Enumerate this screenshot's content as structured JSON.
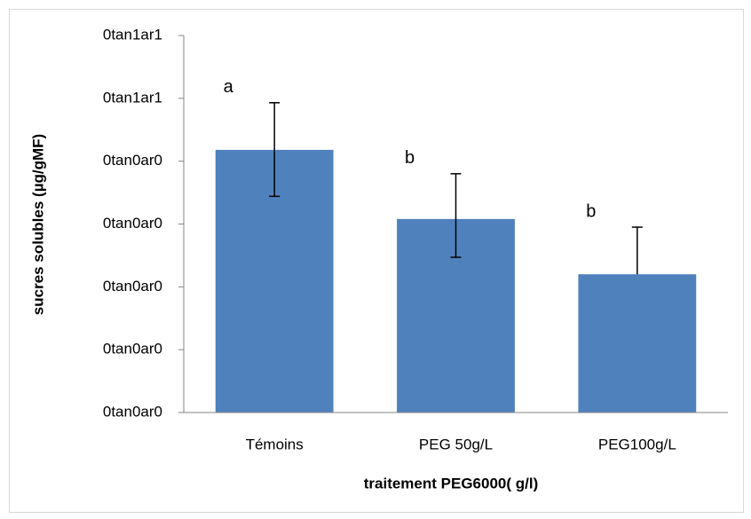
{
  "chart_data": {
    "type": "bar",
    "categories": [
      "Témoins",
      "PEG 50g/L",
      "PEG100g/L"
    ],
    "values": [
      4.18,
      3.08,
      2.2
    ],
    "errors": [
      0.75,
      0.72,
      0.75
    ],
    "errors_minus": [
      0.74,
      0.61,
      null
    ],
    "annotations": [
      "a",
      "b",
      "b"
    ],
    "color": "#4f81bd",
    "xlabel": "traitement PEG6000( g/l)",
    "ylabel": "sucres solubles (µg/gMF)",
    "ylim": [
      0,
      6
    ],
    "yticks": [
      {
        "value": 0,
        "label": "0tan0ar0"
      },
      {
        "value": 1,
        "label": "0tan0ar0"
      },
      {
        "value": 2,
        "label": "0tan0ar0"
      },
      {
        "value": 3,
        "label": "0tan0ar0"
      },
      {
        "value": 4,
        "label": "0tan0ar0"
      },
      {
        "value": 5,
        "label": "0tan1ar1"
      },
      {
        "value": 6,
        "label": "0tan1ar1"
      }
    ],
    "grid": false
  }
}
